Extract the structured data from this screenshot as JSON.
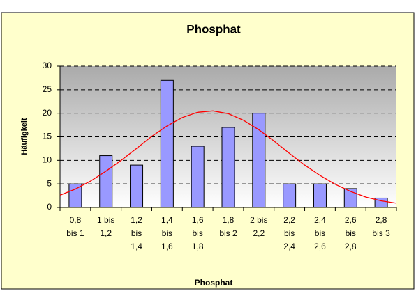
{
  "chart_data": {
    "type": "bar",
    "title": "Phosphat",
    "x_label": "Phosphat",
    "y_label": "Häufigkeit",
    "categories": [
      "0,8\nbis 1",
      "1 bis\n1,2",
      "1,2\nbis\n1,4",
      "1,4\nbis\n1,6",
      "1,6\nbis\n1,8",
      "1,8\nbis 2",
      "2 bis\n2,2",
      "2,2\nbis\n2,4",
      "2,4\nbis\n2,6",
      "2,6\nbis\n2,8",
      "2,8\nbis 3"
    ],
    "values": [
      5,
      11,
      9,
      27,
      13,
      17,
      20,
      5,
      5,
      4,
      2
    ],
    "color": "#9999ff",
    "ylim": [
      0,
      30
    ],
    "yticks": [
      0,
      5,
      10,
      15,
      20,
      25,
      30
    ],
    "grid": true,
    "curve": {
      "type": "line",
      "color": "#ff0000",
      "xlim": [
        0.8,
        3.0
      ],
      "x": [
        0.8,
        0.9,
        1.0,
        1.1,
        1.2,
        1.3,
        1.4,
        1.5,
        1.6,
        1.7,
        1.8,
        1.9,
        2.0,
        2.1,
        2.2,
        2.3,
        2.4,
        2.5,
        2.6,
        2.7,
        2.8,
        2.9,
        3.0
      ],
      "values": [
        2.6,
        3.9,
        5.6,
        7.7,
        10.0,
        12.5,
        15.1,
        17.3,
        19.1,
        20.2,
        20.5,
        19.9,
        18.5,
        16.5,
        14.1,
        11.5,
        9.0,
        6.8,
        4.9,
        3.4,
        2.2,
        1.4,
        0.9
      ]
    }
  }
}
